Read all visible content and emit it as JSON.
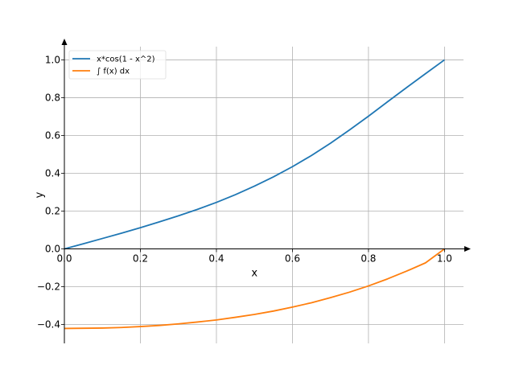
{
  "chart_data": {
    "type": "line",
    "title": "",
    "xlabel": "x",
    "ylabel": "y",
    "xlim": [
      0.0,
      1.05
    ],
    "ylim": [
      -0.5,
      1.07
    ],
    "xticks": [
      0.0,
      0.2,
      0.4,
      0.6,
      0.8,
      1.0
    ],
    "xtick_labels": [
      "0.0",
      "0.2",
      "0.4",
      "0.6",
      "0.8",
      "1.0"
    ],
    "yticks": [
      -0.4,
      -0.2,
      0.0,
      0.2,
      0.4,
      0.6,
      0.8,
      1.0
    ],
    "ytick_labels": [
      "−0.4",
      "−0.2",
      "0.0",
      "0.2",
      "0.4",
      "0.6",
      "0.8",
      "1.0"
    ],
    "grid": true,
    "legend_position": "top-left",
    "series": [
      {
        "name": "x*cos(1 - x^2)",
        "color": "#1f77b4",
        "x": [
          0.0,
          0.05,
          0.1,
          0.15,
          0.2,
          0.25,
          0.3,
          0.35,
          0.4,
          0.45,
          0.5,
          0.55,
          0.6,
          0.65,
          0.7,
          0.75,
          0.8,
          0.85,
          0.9,
          0.95,
          1.0
        ],
        "y": [
          0.0,
          0.027,
          0.055,
          0.083,
          0.112,
          0.143,
          0.175,
          0.209,
          0.246,
          0.287,
          0.332,
          0.381,
          0.435,
          0.494,
          0.559,
          0.629,
          0.702,
          0.778,
          0.853,
          0.927,
          1.0
        ]
      },
      {
        "name": "∫ f(x) dx",
        "color": "#ff7f0e",
        "x": [
          0.0,
          0.05,
          0.1,
          0.15,
          0.2,
          0.25,
          0.3,
          0.35,
          0.4,
          0.45,
          0.5,
          0.55,
          0.6,
          0.65,
          0.7,
          0.75,
          0.8,
          0.85,
          0.9,
          0.95,
          1.0
        ],
        "y": [
          -0.421,
          -0.42,
          -0.419,
          -0.416,
          -0.411,
          -0.405,
          -0.397,
          -0.387,
          -0.376,
          -0.362,
          -0.347,
          -0.329,
          -0.308,
          -0.285,
          -0.258,
          -0.229,
          -0.196,
          -0.159,
          -0.118,
          -0.074,
          0.0
        ]
      }
    ]
  }
}
